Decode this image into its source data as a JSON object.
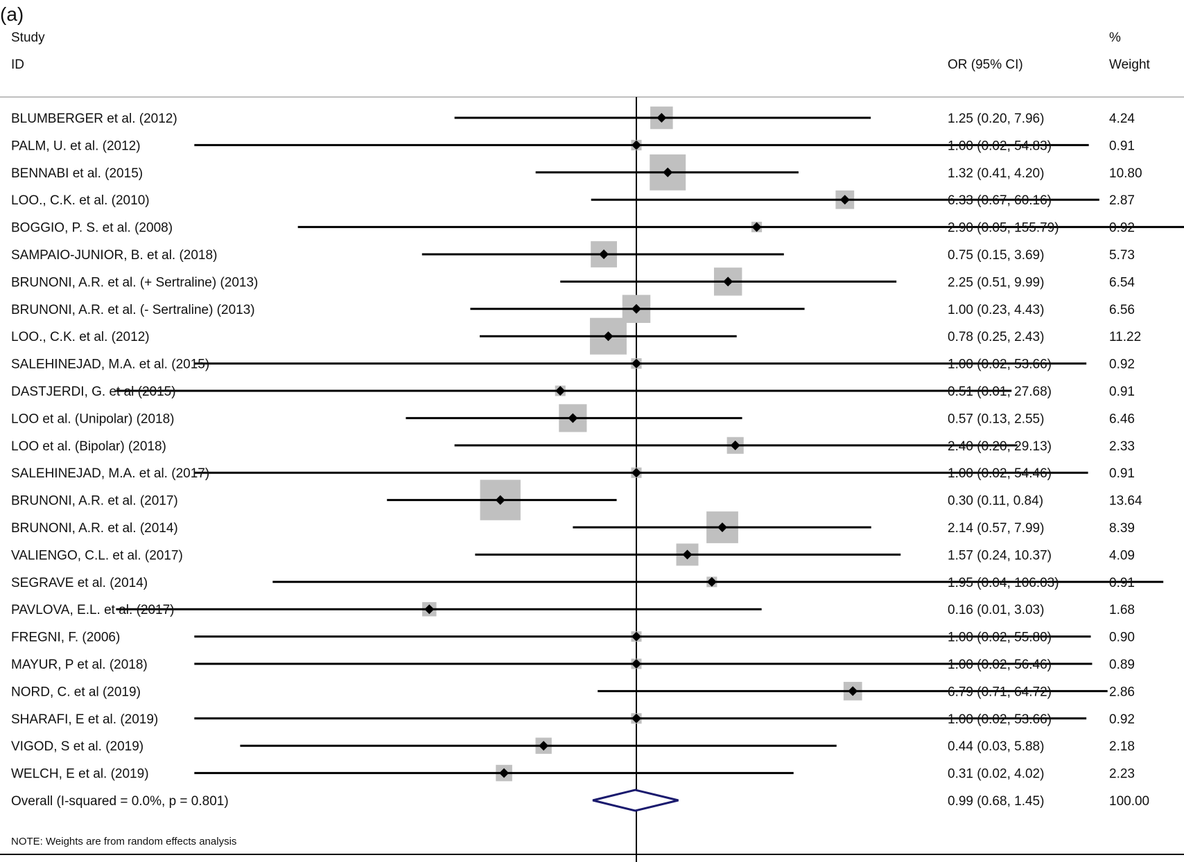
{
  "panel_label": "(a)",
  "headers": {
    "study_line1": "Study",
    "study_line2": "ID",
    "effect": "OR (95% CI)",
    "weight_line1": "%",
    "weight_line2": "Weight"
  },
  "note": "NOTE: Weights are from random effects analysis",
  "chart_data": {
    "type": "forest",
    "effect_measure": "OR (95% CI)",
    "null_value": 1,
    "studies": [
      {
        "label": "BLUMBERGER et al. (2012)",
        "or": 1.25,
        "lower": 0.2,
        "upper": 7.96,
        "ci_text": "1.25 (0.20, 7.96)",
        "weight": "4.24"
      },
      {
        "label": "PALM, U. et al. (2012)",
        "or": 1.0,
        "lower": 0.02,
        "upper": 54.83,
        "ci_text": "1.00 (0.02, 54.83)",
        "weight": "0.91"
      },
      {
        "label": "BENNABI et al. (2015)",
        "or": 1.32,
        "lower": 0.41,
        "upper": 4.2,
        "ci_text": "1.32 (0.41, 4.20)",
        "weight": "10.80"
      },
      {
        "label": "LOO., C.K. et al.  (2010)",
        "or": 6.33,
        "lower": 0.67,
        "upper": 60.16,
        "ci_text": "6.33 (0.67, 60.16)",
        "weight": "2.87"
      },
      {
        "label": "BOGGIO, P. S. et al.  (2008)",
        "or": 2.9,
        "lower": 0.05,
        "upper": 155.79,
        "ci_text": "2.90 (0.05, 155.79)",
        "weight": "0.92"
      },
      {
        "label": "SAMPAIO-JUNIOR, B. et al.  (2018)",
        "or": 0.75,
        "lower": 0.15,
        "upper": 3.69,
        "ci_text": "0.75 (0.15, 3.69)",
        "weight": "5.73"
      },
      {
        "label": "BRUNONI, A.R. et al. (+ Sertraline) (2013)",
        "or": 2.25,
        "lower": 0.51,
        "upper": 9.99,
        "ci_text": "2.25 (0.51, 9.99)",
        "weight": "6.54"
      },
      {
        "label": "BRUNONI, A.R. et al. (- Sertraline) (2013)",
        "or": 1.0,
        "lower": 0.23,
        "upper": 4.43,
        "ci_text": "1.00 (0.23, 4.43)",
        "weight": "6.56"
      },
      {
        "label": "LOO., C.K. et al.  (2012)",
        "or": 0.78,
        "lower": 0.25,
        "upper": 2.43,
        "ci_text": "0.78 (0.25, 2.43)",
        "weight": "11.22"
      },
      {
        "label": "SALEHINEJAD, M.A. et al. (2015)",
        "or": 1.0,
        "lower": 0.02,
        "upper": 53.66,
        "ci_text": "1.00 (0.02, 53.66)",
        "weight": "0.92"
      },
      {
        "label": "DASTJERDI, G. et al (2015)",
        "or": 0.51,
        "lower": 0.01,
        "upper": 27.68,
        "ci_text": "0.51 (0.01, 27.68)",
        "weight": "0.91"
      },
      {
        "label": "LOO et al. (Unipolar) (2018)",
        "or": 0.57,
        "lower": 0.13,
        "upper": 2.55,
        "ci_text": "0.57 (0.13, 2.55)",
        "weight": "6.46"
      },
      {
        "label": "LOO et al. (Bipolar) (2018)",
        "or": 2.4,
        "lower": 0.2,
        "upper": 29.13,
        "ci_text": "2.40 (0.20, 29.13)",
        "weight": "2.33"
      },
      {
        "label": "SALEHINEJAD, M.A. et al. (2017)",
        "or": 1.0,
        "lower": 0.02,
        "upper": 54.46,
        "ci_text": "1.00 (0.02, 54.46)",
        "weight": "0.91"
      },
      {
        "label": "BRUNONI, A.R. et al.  (2017)",
        "or": 0.3,
        "lower": 0.11,
        "upper": 0.84,
        "ci_text": "0.30 (0.11, 0.84)",
        "weight": "13.64"
      },
      {
        "label": "BRUNONI, A.R. et al.  (2014)",
        "or": 2.14,
        "lower": 0.57,
        "upper": 7.99,
        "ci_text": "2.14 (0.57, 7.99)",
        "weight": "8.39"
      },
      {
        "label": "VALIENGO, C.L. et al. (2017)",
        "or": 1.57,
        "lower": 0.24,
        "upper": 10.37,
        "ci_text": "1.57 (0.24, 10.37)",
        "weight": "4.09"
      },
      {
        "label": "SEGRAVE et al. (2014)",
        "or": 1.95,
        "lower": 0.04,
        "upper": 106.03,
        "ci_text": "1.95 (0.04, 106.03)",
        "weight": "0.91"
      },
      {
        "label": "PAVLOVA, E.L. et al. (2017)",
        "or": 0.16,
        "lower": 0.01,
        "upper": 3.03,
        "ci_text": "0.16 (0.01, 3.03)",
        "weight": "1.68"
      },
      {
        "label": "FREGNI, F.  (2006)",
        "or": 1.0,
        "lower": 0.02,
        "upper": 55.8,
        "ci_text": "1.00 (0.02, 55.80)",
        "weight": "0.90"
      },
      {
        "label": "MAYUR, P et al. (2018)",
        "or": 1.0,
        "lower": 0.02,
        "upper": 56.46,
        "ci_text": "1.00 (0.02, 56.46)",
        "weight": "0.89"
      },
      {
        "label": "NORD, C. et al (2019)",
        "or": 6.79,
        "lower": 0.71,
        "upper": 64.72,
        "ci_text": "6.79 (0.71, 64.72)",
        "weight": "2.86"
      },
      {
        "label": "SHARAFI, E et al. (2019)",
        "or": 1.0,
        "lower": 0.02,
        "upper": 53.66,
        "ci_text": "1.00 (0.02, 53.66)",
        "weight": "0.92"
      },
      {
        "label": "VIGOD, S et al. (2019)",
        "or": 0.44,
        "lower": 0.03,
        "upper": 5.88,
        "ci_text": "0.44 (0.03, 5.88)",
        "weight": "2.18"
      },
      {
        "label": "WELCH, E et al. (2019)",
        "or": 0.31,
        "lower": 0.02,
        "upper": 4.02,
        "ci_text": "0.31 (0.02, 4.02)",
        "weight": "2.23"
      }
    ],
    "overall": {
      "label": "Overall  (I-squared = 0.0%, p = 0.801)",
      "or": 0.99,
      "lower": 0.68,
      "upper": 1.45,
      "ci_text": "0.99 (0.68, 1.45)",
      "weight": "100.00"
    },
    "x_scale": "log",
    "colors": {
      "weight_box": "#c0c0c0",
      "point": "#000000",
      "ci_line": "#000000",
      "overall_diamond": "#1a1a6e",
      "rule": "#bfbfbf"
    }
  }
}
